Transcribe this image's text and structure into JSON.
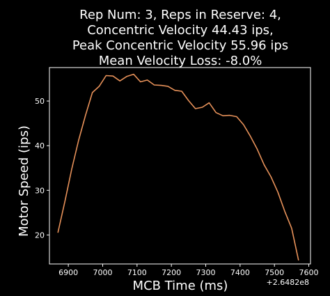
{
  "chart_data": {
    "type": "line",
    "title_lines": [
      "Rep Num: 3, Reps in Reserve: 4,",
      "Concentric Velocity 44.43 ips,",
      "Peak Concentric Velocity 55.96 ips",
      "Mean Velocity Loss: -8.0%"
    ],
    "xlabel": "MCB Time (ms)",
    "ylabel": "Motor Speed (ips)",
    "x_offset_label": "+2.6482e8",
    "xlim": [
      6845,
      7605
    ],
    "ylim": [
      13.5,
      57.5
    ],
    "x_ticks": [
      6900,
      7000,
      7100,
      7200,
      7300,
      7400,
      7500,
      7600
    ],
    "y_ticks": [
      20,
      30,
      40,
      50
    ],
    "grid": false,
    "series": [
      {
        "color": "#e8925a",
        "x": [
          6870,
          6890,
          6910,
          6930,
          6950,
          6970,
          6990,
          7010,
          7030,
          7050,
          7070,
          7090,
          7110,
          7130,
          7150,
          7170,
          7190,
          7210,
          7230,
          7250,
          7270,
          7290,
          7310,
          7330,
          7350,
          7370,
          7390,
          7410,
          7430,
          7450,
          7470,
          7490,
          7510,
          7530,
          7550,
          7570
        ],
        "y": [
          20.6,
          27.5,
          34.8,
          41.2,
          46.8,
          51.9,
          53.3,
          55.7,
          55.6,
          54.5,
          55.5,
          56.0,
          54.3,
          54.7,
          53.6,
          53.5,
          53.3,
          52.4,
          52.2,
          50.1,
          48.3,
          48.6,
          49.6,
          47.4,
          46.7,
          46.8,
          46.5,
          44.7,
          42.1,
          39.2,
          35.7,
          33.0,
          29.6,
          25.3,
          21.5,
          14.4
        ]
      }
    ]
  }
}
